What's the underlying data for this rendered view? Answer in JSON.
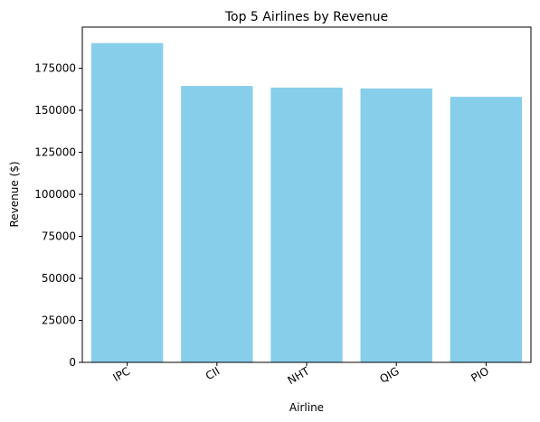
{
  "chart_data": {
    "type": "bar",
    "title": "Top 5 Airlines by Revenue",
    "xlabel": "Airline",
    "ylabel": "Revenue ($)",
    "categories": [
      "IPC",
      "CII",
      "NHT",
      "QIG",
      "PIO"
    ],
    "values": [
      190000,
      164500,
      163500,
      163000,
      158000
    ],
    "ylim": [
      0,
      199500
    ],
    "yticks": [
      0,
      25000,
      50000,
      75000,
      100000,
      125000,
      150000,
      175000
    ],
    "bar_color": "#87CEEB",
    "grid": false,
    "legend": "none"
  }
}
